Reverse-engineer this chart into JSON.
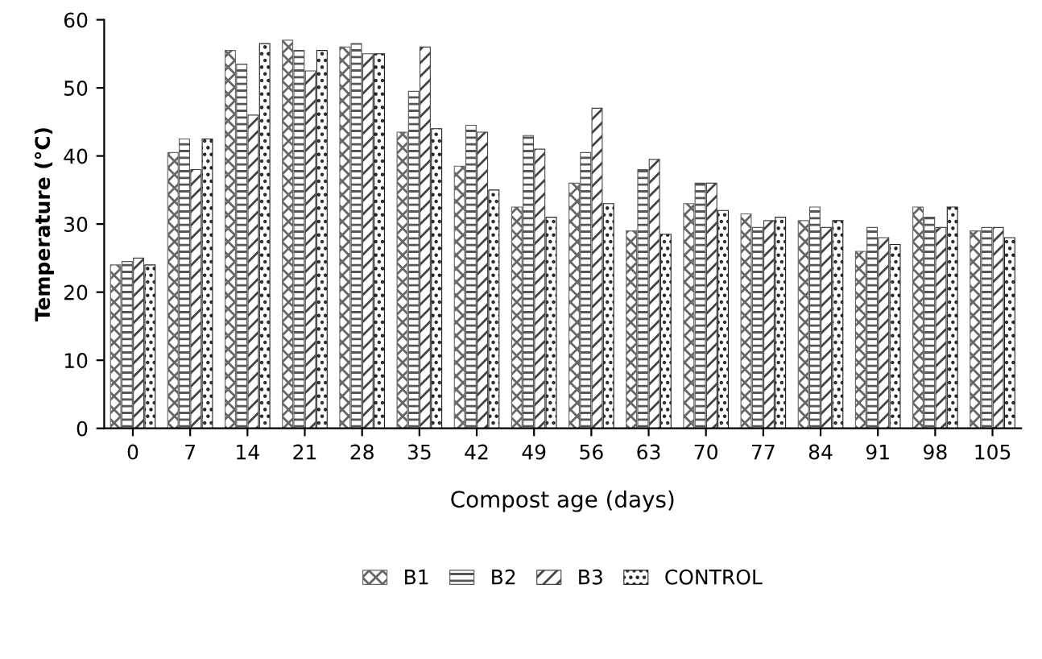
{
  "chart_data": {
    "type": "bar",
    "xlabel": "Compost age (days)",
    "ylabel": "Temperature (°C)",
    "categories": [
      "0",
      "7",
      "14",
      "21",
      "28",
      "35",
      "42",
      "49",
      "56",
      "63",
      "70",
      "77",
      "84",
      "91",
      "98",
      "105"
    ],
    "series": [
      {
        "name": "B1",
        "color": "#666666",
        "values": [
          24,
          40.5,
          55.5,
          57,
          56,
          43.5,
          38.5,
          32.5,
          36,
          29,
          33,
          31.5,
          30.5,
          26,
          32.5,
          29
        ]
      },
      {
        "name": "B2",
        "color": "#555555",
        "values": [
          24.5,
          42.5,
          53.5,
          55.5,
          56.5,
          49.5,
          44.5,
          43,
          40.5,
          38,
          36,
          29.5,
          32.5,
          29.5,
          31,
          29.5
        ]
      },
      {
        "name": "B3",
        "color": "#444444",
        "values": [
          25,
          38,
          46,
          52.5,
          55,
          56,
          43.5,
          41,
          47,
          39.5,
          36,
          30.5,
          29.5,
          28,
          29.5,
          29.5
        ]
      },
      {
        "name": "CONTROL",
        "color": "#222222",
        "values": [
          24,
          42.5,
          56.5,
          55.5,
          55,
          44,
          35,
          31,
          33,
          28.5,
          32,
          31,
          30.5,
          27,
          32.5,
          28
        ]
      }
    ],
    "ylim": [
      0,
      60
    ],
    "yticks": [
      0,
      10,
      20,
      30,
      40,
      50,
      60
    ],
    "grid": false,
    "legend": "bottom"
  }
}
